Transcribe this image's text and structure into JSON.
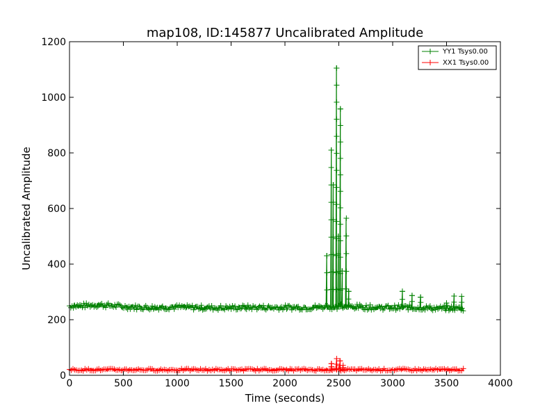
{
  "chart_data": {
    "type": "line",
    "title": "map108, ID:145877 Uncalibrated Amplitude",
    "xlabel": "Time (seconds)",
    "ylabel": "Uncalibrated Amplitude",
    "xlim": [
      0,
      4000
    ],
    "ylim": [
      0,
      1200
    ],
    "xticks": [
      0,
      500,
      1000,
      1500,
      2000,
      2500,
      3000,
      3500,
      4000
    ],
    "yticks": [
      0,
      200,
      400,
      600,
      800,
      1000,
      1200
    ],
    "legend_position": "top-right",
    "series": [
      {
        "name": "YY1 Tsys0.00",
        "color": "#008000",
        "marker": "+",
        "baseline_x": [
          0,
          100,
          200,
          300,
          400,
          500,
          600,
          700,
          800,
          900,
          1000,
          1100,
          1200,
          1300,
          1400,
          1500,
          1600,
          1700,
          1800,
          1900,
          2000,
          2100,
          2200,
          2300,
          2400,
          2500,
          2600,
          2700,
          2800,
          2900,
          3000,
          3100,
          3200,
          3300,
          3400,
          3500,
          3600,
          3660
        ],
        "baseline_y": [
          250,
          250,
          252,
          253,
          250,
          247,
          245,
          244,
          244,
          245,
          245,
          244,
          244,
          243,
          243,
          243,
          244,
          244,
          244,
          244,
          244,
          244,
          244,
          245,
          246,
          247,
          247,
          246,
          244,
          244,
          244,
          244,
          244,
          243,
          241,
          241,
          241,
          241
        ],
        "spikes": [
          {
            "x": 2390,
            "y": 430
          },
          {
            "x": 2430,
            "y": 810
          },
          {
            "x": 2450,
            "y": 685
          },
          {
            "x": 2480,
            "y": 1105
          },
          {
            "x": 2495,
            "y": 500
          },
          {
            "x": 2515,
            "y": 958
          },
          {
            "x": 2530,
            "y": 375
          },
          {
            "x": 2570,
            "y": 565
          },
          {
            "x": 2590,
            "y": 302
          },
          {
            "x": 3090,
            "y": 302
          },
          {
            "x": 3180,
            "y": 287
          },
          {
            "x": 3260,
            "y": 281
          },
          {
            "x": 3500,
            "y": 260
          },
          {
            "x": 3570,
            "y": 285
          },
          {
            "x": 3640,
            "y": 284
          }
        ]
      },
      {
        "name": "XX1 Tsys0.00",
        "color": "#ff0000",
        "marker": "+",
        "baseline_x": [
          0,
          500,
          1000,
          1500,
          2000,
          2500,
          3000,
          3500,
          3660
        ],
        "baseline_y": [
          20,
          20,
          20,
          20,
          20,
          20,
          20,
          20,
          20
        ],
        "spikes": [
          {
            "x": 2430,
            "y": 42
          },
          {
            "x": 2480,
            "y": 60
          },
          {
            "x": 2510,
            "y": 52
          },
          {
            "x": 2540,
            "y": 36
          }
        ]
      }
    ]
  }
}
